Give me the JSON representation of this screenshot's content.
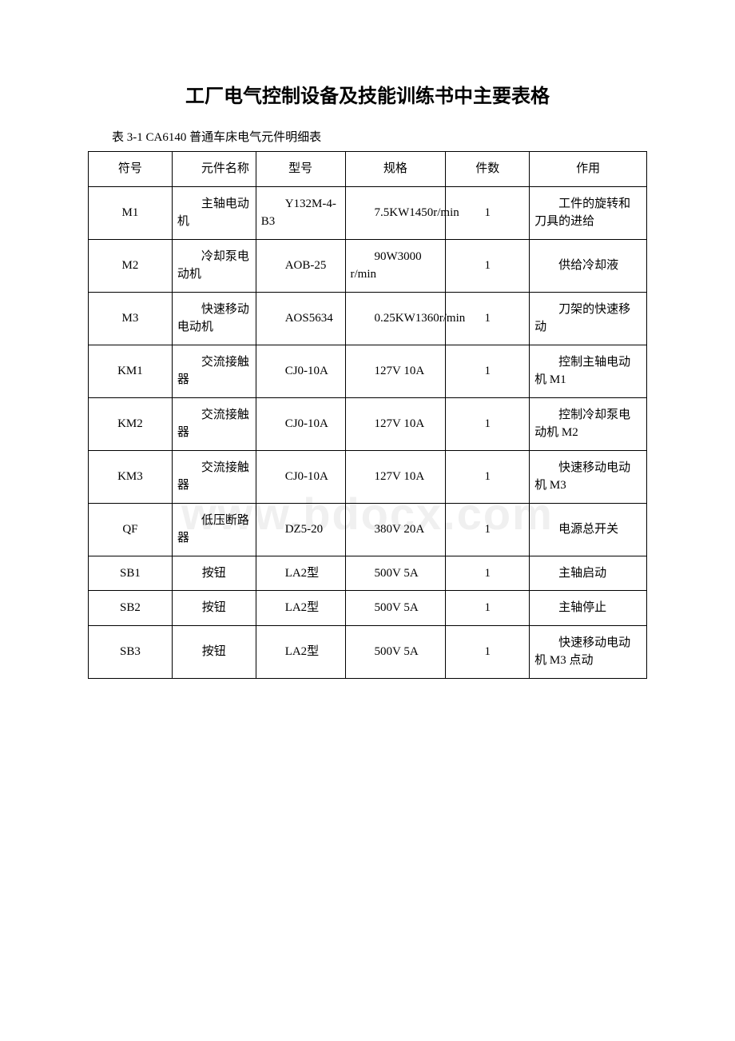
{
  "title": "工厂电气控制设备及技能训练书中主要表格",
  "caption": "表 3-1 CA6140 普通车床电气元件明细表",
  "watermark": "www.bdocx.com",
  "table": {
    "columns": [
      "符号",
      "元件名称",
      "型号",
      "规格",
      "件数",
      "作用"
    ],
    "rows": [
      [
        "M1",
        "主轴电动机",
        "Y132M-4-B3",
        "7.5KW1450r/min",
        "1",
        "工件的旋转和刀具的进给"
      ],
      [
        "M2",
        "冷却泵电动机",
        "AOB-25",
        "90W3000 r/min",
        "1",
        "供给冷却液"
      ],
      [
        "M3",
        "快速移动电动机",
        "AOS5634",
        "0.25KW1360r/min",
        "1",
        "刀架的快速移动"
      ],
      [
        "KM1",
        "交流接触器",
        "CJ0-10A",
        "127V 10A",
        "1",
        "控制主轴电动机 M1"
      ],
      [
        "KM2",
        "交流接触器",
        "CJ0-10A",
        "127V 10A",
        "1",
        "控制冷却泵电动机 M2"
      ],
      [
        "KM3",
        "交流接触器",
        "CJ0-10A",
        "127V 10A",
        "1",
        "快速移动电动机 M3"
      ],
      [
        "QF",
        "低压断路器",
        "DZ5-20",
        "380V 20A",
        "1",
        "电源总开关"
      ],
      [
        "SB1",
        "按钮",
        "LA2型",
        "500V 5A",
        "1",
        "主轴启动"
      ],
      [
        "SB2",
        "按钮",
        "LA2型",
        "500V 5A",
        "1",
        "主轴停止"
      ],
      [
        "SB3",
        "按钮",
        "LA2型",
        "500V 5A",
        "1",
        "快速移动电动机 M3 点动"
      ]
    ],
    "border_color": "#000000",
    "background_color": "#ffffff",
    "font_size": 15,
    "title_font_size": 24,
    "caption_font_size": 15
  }
}
